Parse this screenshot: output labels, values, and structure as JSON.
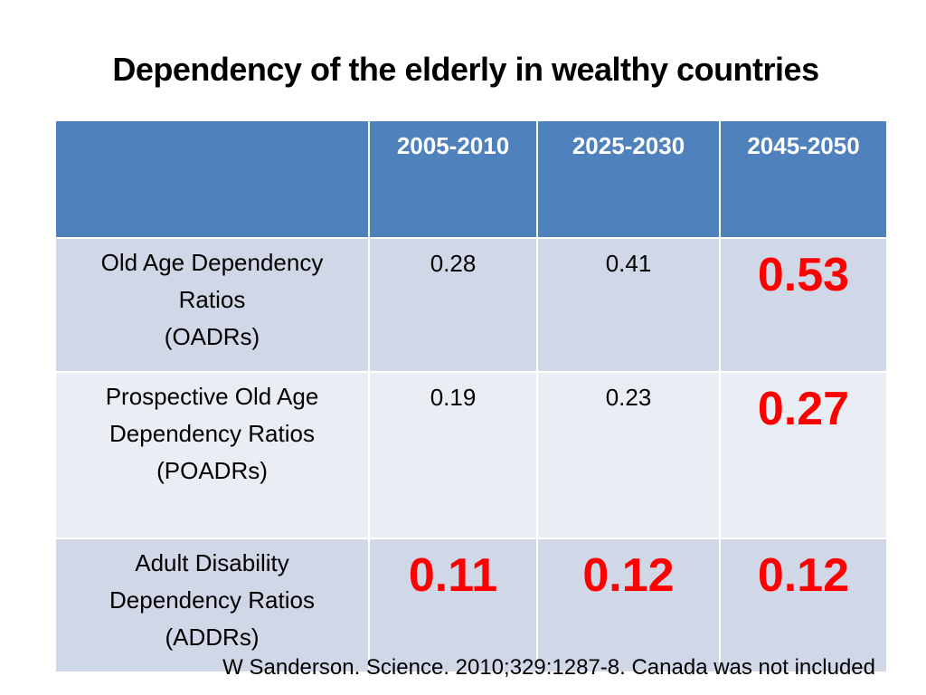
{
  "title": "Dependency of the elderly in wealthy countries",
  "table": {
    "header": {
      "corner": "",
      "columns": [
        "2005-2010",
        "2025-2030",
        "2045-2050"
      ]
    },
    "rows": [
      {
        "label_lines": [
          "Old Age Dependency",
          "Ratios",
          "(OADRs)"
        ],
        "values": [
          "0.28",
          "0.41",
          "0.53"
        ]
      },
      {
        "label_lines": [
          "Prospective Old Age",
          "Dependency Ratios",
          "(POADRs)"
        ],
        "values": [
          "0.19",
          "0.23",
          "0.27"
        ]
      },
      {
        "label_lines": [
          "Adult Disability",
          "Dependency Ratios",
          "(ADDRs)"
        ],
        "values": [
          "0.11",
          "0.12",
          "0.12"
        ]
      }
    ]
  },
  "colors": {
    "header_bg": "#4f81bd",
    "row_odd_bg": "#d0d8e8",
    "row_even_bg": "#e9edf4",
    "highlight_text": "#ff0000"
  },
  "citation": "W Sanderson. Science. 2010;329:1287-8. Canada was not included"
}
